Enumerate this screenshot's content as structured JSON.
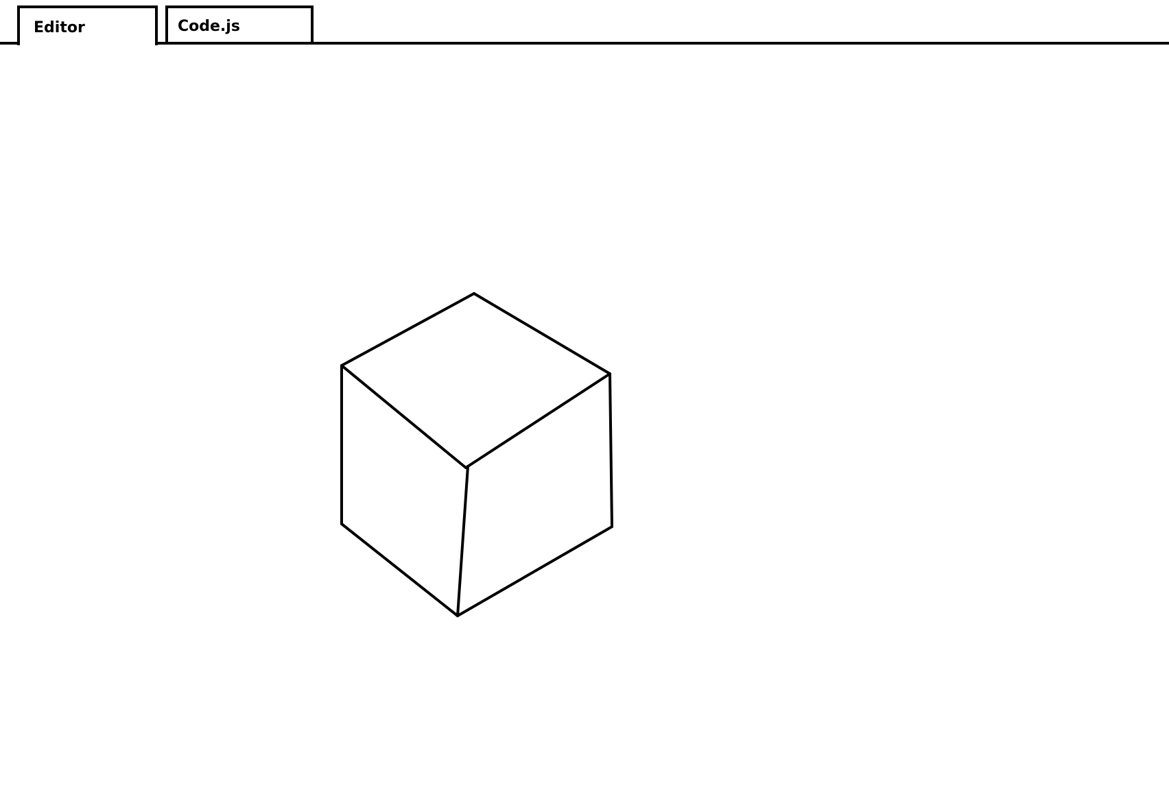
{
  "tabs": [
    {
      "label": "Editor",
      "active": true
    },
    {
      "label": "Code.js",
      "active": false
    }
  ],
  "colors": {
    "stroke": "#000000",
    "background": "#ffffff"
  }
}
